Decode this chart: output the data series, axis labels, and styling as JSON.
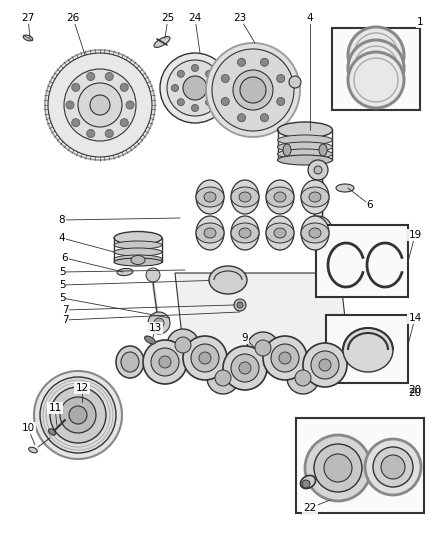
{
  "bg_color": "#ffffff",
  "line_color": "#333333",
  "gray1": "#aaaaaa",
  "gray2": "#cccccc",
  "gray3": "#888888",
  "fig_width": 4.38,
  "fig_height": 5.33,
  "dpi": 100
}
